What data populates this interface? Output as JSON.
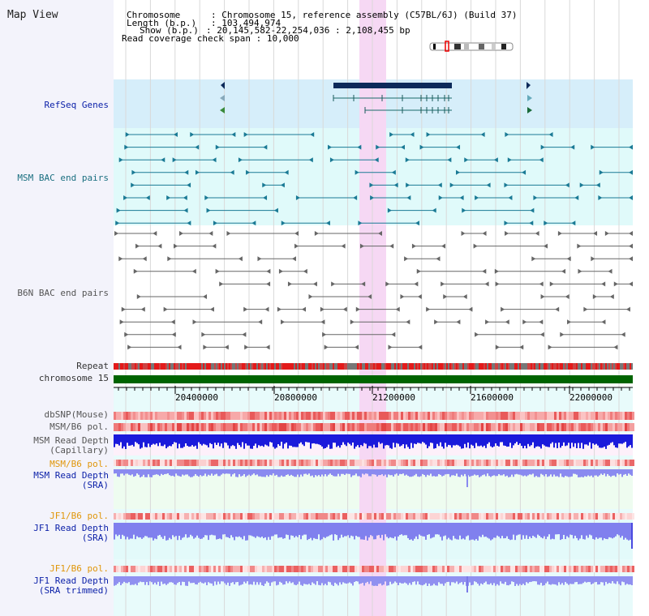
{
  "header": {
    "title": "Map View",
    "chromosome_key": "Chromosome",
    "chromosome_val": "Chromosome 15, reference assembly (C57BL/6J) (Build 37)",
    "length_key": "Length (b.p.)",
    "length_val": "103,494,974",
    "show_key": "Show (b.p.)",
    "show_val": "20,145,582-22,254,036 : 2,108,455 bp",
    "coverage_key": "Read coverage check span",
    "coverage_val": "10,000"
  },
  "tracks": {
    "refseq": "RefSeq Genes",
    "msm_bac": "MSM BAC end pairs",
    "b6n_bac": "B6N BAC end pairs",
    "repeat": "Repeat",
    "chromosome": "chromosome 15",
    "dbsnp": "dbSNP(Mouse)",
    "msm_b6_pol": "MSM/B6 pol.",
    "msm_depth_cap_1": "MSM Read Depth",
    "msm_depth_cap_2": "(Capillary)",
    "msm_b6_pol2": "MSM/B6 pol.",
    "msm_depth_sra_1": "MSM Read Depth",
    "msm_depth_sra_2": "(SRA)",
    "jf1_b6_pol": "JF1/B6 pol.",
    "jf1_depth_sra_1": "JF1 Read Depth",
    "jf1_depth_sra_2": "(SRA)",
    "jf1_b6_pol2": "JF1/B6 pol.",
    "jf1_depth_trim_1": "JF1 Read Depth",
    "jf1_depth_trim_2": "(SRA trimmed)"
  },
  "axis": {
    "ticks": [
      "20400000",
      "20800000",
      "21200000",
      "21600000",
      "22000000"
    ]
  },
  "colors": {
    "highlight": "#f6d8f4",
    "refseq_bg": "#d6eefa",
    "msm_bg": "#e0fafa",
    "chrom_bar": "#006400",
    "depth_blue": "#1a1adb",
    "depth_light": "#8a8af0"
  }
}
